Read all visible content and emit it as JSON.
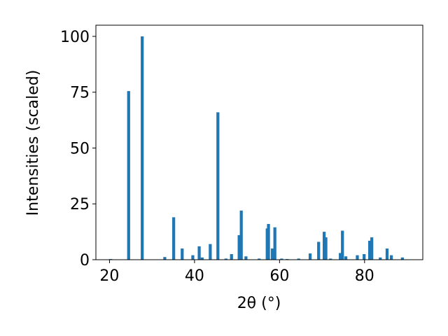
{
  "chart_data": {
    "type": "bar",
    "x_label": "2θ (°)",
    "y_label": "Intensities (scaled)",
    "x": [
      20.3,
      24.5,
      27.7,
      33,
      35.1,
      37.1,
      39.6,
      41.1,
      41.8,
      43.7,
      45.5,
      47.4,
      48.7,
      50.5,
      51,
      52.1,
      55.2,
      57.1,
      57.4,
      58.3,
      58.9,
      60.5,
      61.8,
      64.5,
      67.2,
      69.2,
      70.5,
      70.9,
      72,
      74.3,
      74.8,
      75.6,
      78.3,
      79.9,
      81.2,
      81.7,
      83.7,
      85.3,
      86.3,
      88.9
    ],
    "values": [
      0.3,
      75.5,
      100,
      1.2,
      19,
      5,
      2,
      6,
      1,
      7,
      66,
      0.5,
      2.5,
      11,
      22,
      1.5,
      0.5,
      14,
      16,
      5,
      14.5,
      0.5,
      0.3,
      0.5,
      2.8,
      8,
      12.5,
      10,
      0.5,
      3,
      13,
      1.5,
      2,
      2.5,
      8.5,
      10,
      1,
      5,
      2,
      1
    ],
    "color": "#1f77b4",
    "xlim": [
      16.8,
      93.7
    ],
    "xticks": [
      20,
      40,
      60,
      80
    ],
    "ylim": [
      0,
      105
    ],
    "yticks": [
      0,
      25,
      50,
      75,
      100
    ]
  }
}
